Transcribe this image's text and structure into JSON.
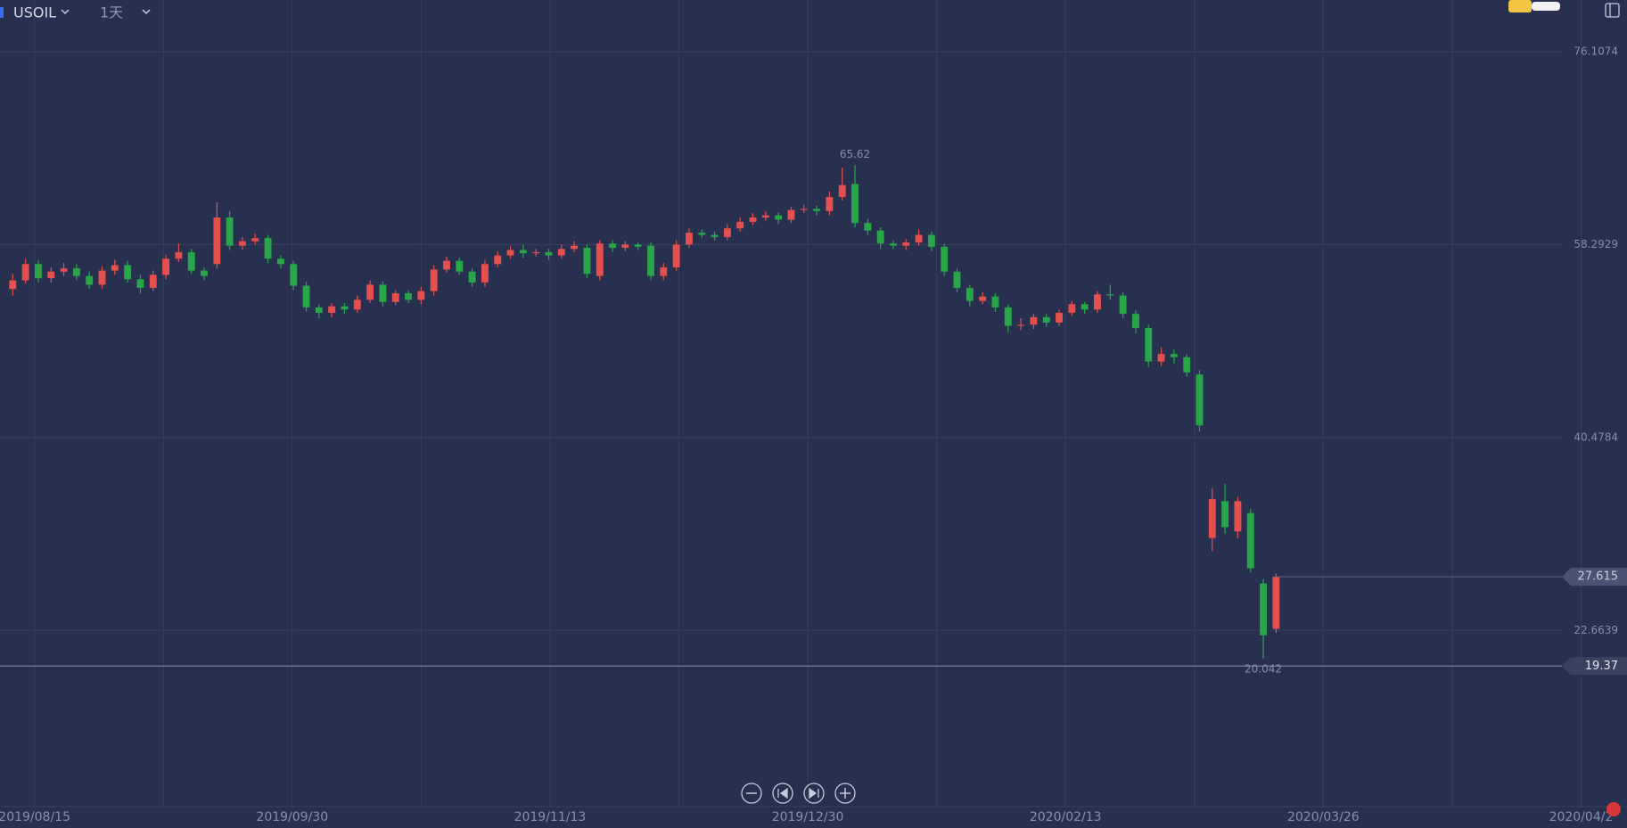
{
  "chart_data": {
    "type": "candlestick",
    "symbol": "USOIL",
    "interval": "1天",
    "up_color": "#e5504f",
    "down_color": "#2aa64a",
    "ylim": [
      6.382,
      80.896
    ],
    "yticks": [
      76.1074,
      58.2929,
      40.4784,
      22.6639
    ],
    "xlim": [
      -1,
      126.5
    ],
    "xticks": [
      {
        "value": 1.7,
        "label": "2019/08/15"
      },
      {
        "value": 21.9,
        "label": "2019/09/30"
      },
      {
        "value": 42.1,
        "label": "2019/11/13"
      },
      {
        "value": 62.3,
        "label": "2019/12/30"
      },
      {
        "value": 82.5,
        "label": "2020/02/13"
      },
      {
        "value": 102.7,
        "label": "2020/03/26"
      },
      {
        "value": 122.9,
        "label": "2020/04/2"
      }
    ],
    "grid": true,
    "price_line": 19.37,
    "open": [
      54.2,
      55.0,
      56.5,
      55.2,
      55.8,
      56.1,
      55.4,
      54.6,
      55.9,
      56.4,
      55.1,
      54.3,
      55.5,
      57.0,
      57.6,
      55.9,
      56.5,
      60.8,
      58.2,
      58.6,
      58.9,
      57.0,
      56.5,
      54.5,
      52.5,
      52.0,
      52.6,
      52.3,
      53.2,
      54.6,
      53.0,
      53.8,
      53.2,
      54.0,
      56.0,
      56.8,
      55.8,
      54.8,
      56.5,
      57.3,
      57.8,
      57.5,
      57.6,
      57.3,
      57.9,
      58.0,
      55.4,
      58.4,
      58.0,
      58.3,
      58.2,
      55.4,
      56.2,
      58.3,
      59.4,
      59.2,
      59.0,
      59.8,
      60.4,
      60.8,
      61.0,
      60.6,
      61.5,
      61.6,
      61.4,
      62.7,
      63.9,
      60.3,
      59.6,
      58.4,
      58.2,
      58.5,
      59.2,
      58.1,
      55.8,
      54.3,
      53.1,
      53.5,
      52.5,
      50.8,
      50.9,
      51.6,
      51.1,
      52.0,
      52.8,
      52.3,
      53.7,
      53.6,
      51.9,
      50.6,
      47.5,
      48.2,
      47.9,
      46.3,
      31.2,
      34.6,
      31.8,
      33.5,
      27.0,
      22.8
    ],
    "high": [
      55.6,
      57.0,
      56.9,
      56.2,
      56.6,
      56.5,
      55.8,
      56.3,
      56.9,
      56.8,
      55.5,
      55.9,
      57.4,
      58.4,
      57.9,
      56.2,
      62.2,
      61.4,
      59.0,
      59.3,
      59.2,
      57.3,
      56.8,
      54.9,
      52.8,
      52.9,
      52.9,
      53.6,
      55.0,
      54.9,
      54.1,
      54.1,
      54.4,
      56.4,
      57.2,
      57.1,
      56.1,
      56.9,
      57.7,
      58.2,
      58.3,
      57.9,
      57.9,
      58.3,
      58.6,
      58.3,
      58.7,
      58.7,
      58.6,
      58.5,
      58.5,
      56.6,
      58.7,
      59.8,
      59.7,
      59.5,
      60.2,
      60.8,
      61.2,
      61.4,
      61.3,
      61.8,
      62.0,
      61.9,
      63.2,
      65.4,
      65.62,
      60.7,
      59.9,
      58.7,
      58.8,
      59.7,
      59.5,
      58.4,
      56.1,
      54.6,
      53.9,
      53.8,
      52.8,
      51.5,
      51.9,
      51.9,
      52.3,
      53.1,
      53.0,
      54.0,
      54.6,
      53.9,
      52.2,
      50.9,
      48.8,
      48.6,
      48.2,
      46.7,
      35.8,
      36.2,
      35.0,
      33.9,
      27.4,
      27.9
    ],
    "low": [
      53.6,
      54.7,
      54.8,
      54.8,
      55.4,
      55.0,
      54.2,
      54.2,
      55.5,
      54.8,
      53.8,
      54.0,
      55.1,
      56.7,
      55.6,
      55.0,
      56.1,
      57.8,
      57.8,
      58.3,
      56.6,
      56.1,
      54.1,
      52.1,
      51.5,
      51.6,
      51.9,
      52.0,
      52.9,
      52.6,
      52.7,
      52.9,
      52.8,
      53.6,
      55.7,
      55.5,
      54.4,
      54.4,
      56.2,
      57.0,
      57.1,
      57.2,
      56.9,
      57.0,
      57.6,
      55.2,
      55.0,
      57.6,
      57.7,
      57.8,
      55.0,
      55.0,
      55.9,
      58.0,
      58.9,
      58.7,
      58.7,
      59.5,
      60.1,
      60.5,
      60.2,
      60.3,
      61.2,
      61.0,
      61.0,
      62.4,
      59.9,
      59.2,
      57.9,
      57.9,
      57.8,
      58.2,
      57.7,
      55.4,
      53.9,
      52.6,
      52.8,
      52.1,
      50.2,
      50.4,
      50.5,
      50.7,
      50.8,
      51.7,
      51.9,
      52.0,
      53.2,
      51.5,
      50.1,
      47.0,
      47.1,
      47.3,
      46.1,
      41.0,
      30.0,
      31.6,
      31.2,
      28.0,
      20.042,
      22.4
    ],
    "close": [
      55.0,
      56.5,
      55.2,
      55.8,
      56.1,
      55.4,
      54.6,
      55.9,
      56.4,
      55.1,
      54.3,
      55.5,
      57.0,
      57.6,
      55.9,
      55.4,
      60.8,
      58.2,
      58.6,
      58.9,
      57.0,
      56.5,
      54.5,
      52.5,
      52.0,
      52.6,
      52.3,
      53.2,
      54.6,
      53.0,
      53.8,
      53.2,
      54.0,
      56.0,
      56.8,
      55.8,
      54.8,
      56.5,
      57.3,
      57.8,
      57.5,
      57.6,
      57.3,
      57.9,
      58.2,
      55.6,
      58.4,
      58.0,
      58.3,
      58.1,
      55.4,
      56.2,
      58.3,
      59.4,
      59.2,
      59.0,
      59.8,
      60.4,
      60.8,
      61.0,
      60.6,
      61.5,
      61.6,
      61.4,
      62.7,
      63.8,
      60.3,
      59.6,
      58.4,
      58.2,
      58.5,
      59.2,
      58.1,
      55.8,
      54.3,
      53.1,
      53.5,
      52.5,
      50.8,
      50.9,
      51.6,
      51.1,
      52.0,
      52.8,
      52.3,
      53.7,
      53.6,
      51.9,
      50.6,
      47.5,
      48.2,
      47.9,
      46.5,
      41.6,
      34.8,
      32.2,
      34.6,
      28.4,
      22.2,
      27.615
    ]
  }
}
